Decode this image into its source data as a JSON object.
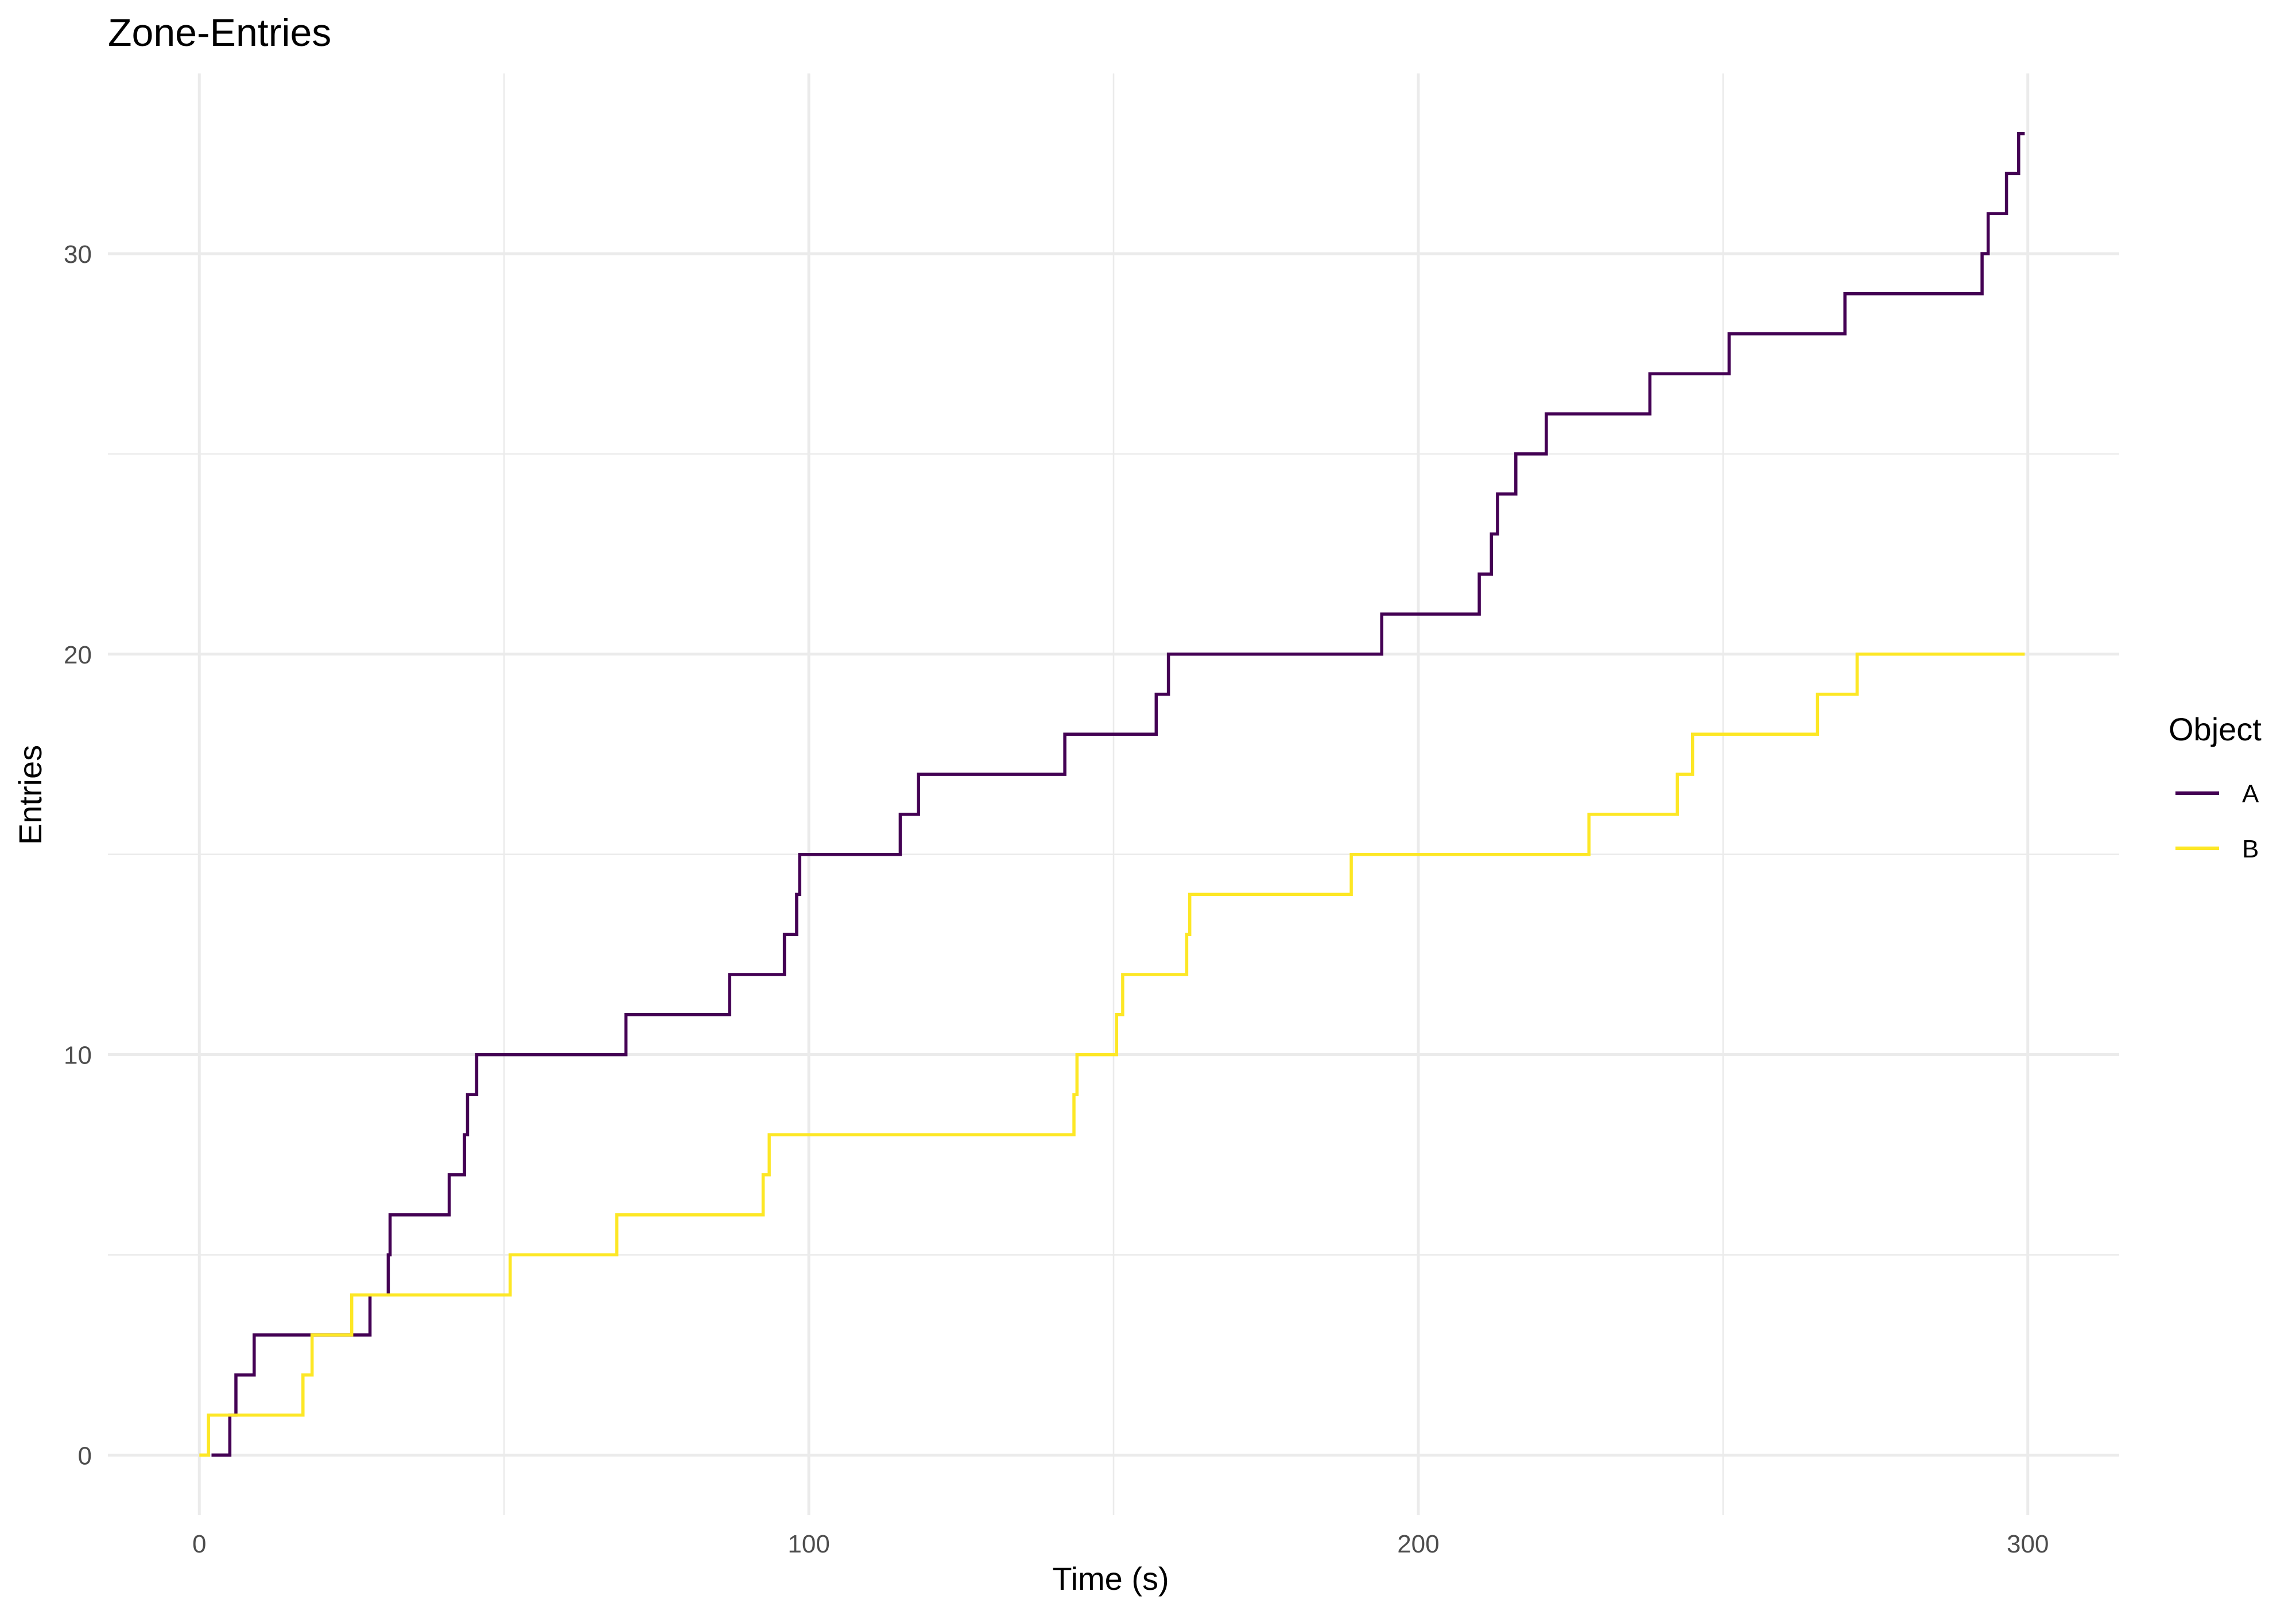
{
  "chart_data": {
    "type": "line",
    "step": true,
    "title": "Zone-Entries",
    "xlabel": "Time (s)",
    "ylabel": "Entries",
    "xlim": [
      -15,
      315
    ],
    "ylim": [
      -1.5,
      34.5
    ],
    "x_major_ticks": [
      0,
      100,
      200,
      300
    ],
    "x_minor_ticks": [
      50,
      150,
      250
    ],
    "y_major_ticks": [
      0,
      10,
      20,
      30
    ],
    "y_minor_ticks": [
      5,
      15,
      25
    ],
    "x_tick_labels": [
      "0",
      "100",
      "200",
      "300"
    ],
    "y_tick_labels": [
      "0",
      "10",
      "20",
      "30"
    ],
    "grid": true,
    "legend": {
      "title": "Object",
      "placement": "right",
      "entries": [
        "A",
        "B"
      ]
    },
    "series": [
      {
        "name": "A",
        "color": "#440154",
        "x": [
          2,
          5,
          6,
          9,
          28,
          31,
          31.3,
          41,
          43.5,
          44,
          45.5,
          70,
          87,
          96,
          98,
          98.5,
          115,
          118,
          142,
          157,
          159,
          194,
          210,
          212,
          213,
          216,
          221,
          238,
          251,
          270,
          292.5,
          293.5,
          296.5,
          298.5,
          299.5
        ],
        "y": [
          0,
          1,
          2,
          3,
          4,
          5,
          6,
          7,
          8,
          9,
          10,
          11,
          12,
          13,
          14,
          15,
          16,
          17,
          18,
          19,
          20,
          21,
          22,
          23,
          24,
          25,
          26,
          27,
          28,
          29,
          30,
          31,
          32,
          33,
          33
        ]
      },
      {
        "name": "B",
        "color": "#FDE725",
        "x": [
          0,
          1.5,
          17,
          18.5,
          25,
          51,
          68.5,
          92.5,
          93.5,
          143.5,
          144,
          150.5,
          151.5,
          162,
          162.5,
          189,
          228,
          242.5,
          245,
          265.5,
          272,
          299.5
        ],
        "y": [
          0,
          1,
          2,
          3,
          4,
          5,
          6,
          7,
          8,
          9,
          10,
          11,
          12,
          13,
          14,
          15,
          16,
          17,
          18,
          19,
          20,
          20
        ]
      }
    ]
  }
}
